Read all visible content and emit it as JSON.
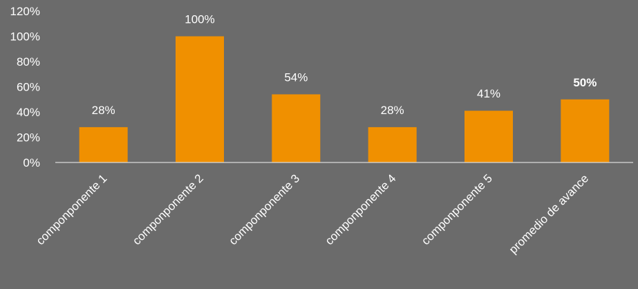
{
  "chart_data": {
    "type": "bar",
    "categories": [
      "componponente 1",
      "componponente 2",
      "componponente 3",
      "componponente 4",
      "componponente 5",
      "promedio de avance"
    ],
    "values": [
      28,
      100,
      54,
      28,
      41,
      50
    ],
    "data_labels": [
      "28%",
      "100%",
      "54%",
      "28%",
      "41%",
      "50%"
    ],
    "bold_labels": [
      false,
      false,
      false,
      false,
      false,
      true
    ],
    "y_ticks": [
      0,
      20,
      40,
      60,
      80,
      100,
      120
    ],
    "y_tick_labels": [
      "0%",
      "20%",
      "40%",
      "60%",
      "80%",
      "100%",
      "120%"
    ],
    "ylim": [
      0,
      120
    ],
    "title": "",
    "xlabel": "",
    "ylabel": "",
    "grid": false,
    "legend": "none",
    "colors": {
      "bar": "#f09000",
      "background": "#6b6b6b",
      "text": "#ffffff",
      "axis": "#d9d9d9"
    }
  }
}
